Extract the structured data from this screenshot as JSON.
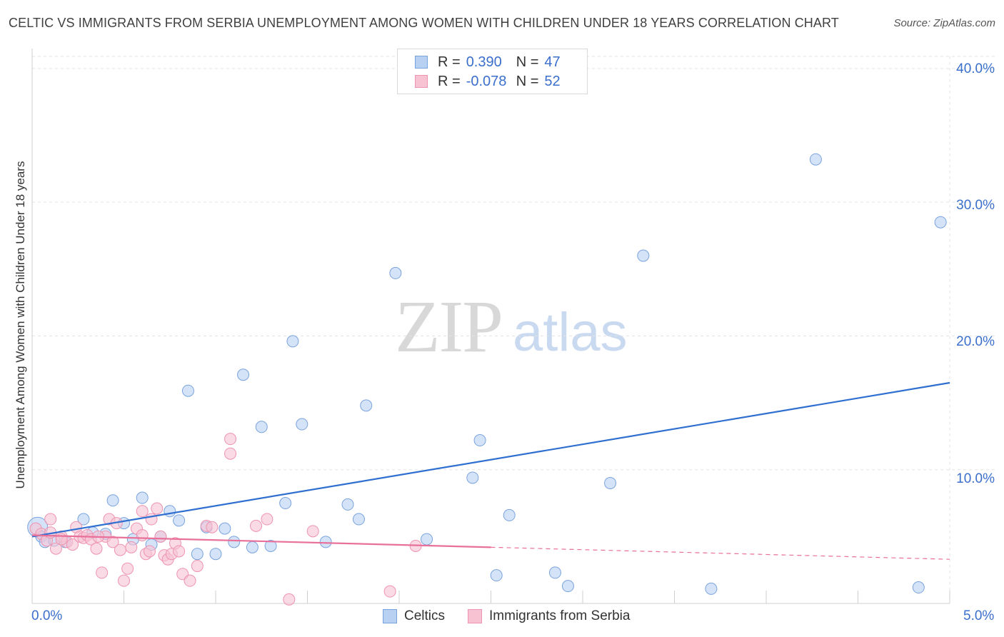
{
  "header": {
    "title": "CELTIC VS IMMIGRANTS FROM SERBIA UNEMPLOYMENT AMONG WOMEN WITH CHILDREN UNDER 18 YEARS CORRELATION CHART",
    "source": "Source: ZipAtlas.com"
  },
  "watermark": {
    "zip": "ZIP",
    "atlas": "atlas"
  },
  "legend": {
    "r_label": "R =",
    "n_label": "N =",
    "rows": [
      {
        "r": "0.390",
        "n": "47"
      },
      {
        "r": "-0.078",
        "n": "52"
      }
    ]
  },
  "colors": {
    "celtic_fill": "#b8d0f2",
    "celtic_stroke": "#7aa3dd",
    "celtic_line": "#2f6fd0",
    "serbia_fill": "#f7c3d3",
    "serbia_stroke": "#ee93b0",
    "serbia_line": "#e8709a",
    "grid": "#e3e3e3",
    "tick_text": "#3a6fcb"
  },
  "chart_data": {
    "type": "scatter",
    "title": "CELTIC VS IMMIGRANTS FROM SERBIA UNEMPLOYMENT AMONG WOMEN WITH CHILDREN UNDER 18 YEARS CORRELATION CHART",
    "xlabel": "",
    "ylabel": "Unemployment Among Women with Children Under 18 years",
    "xlim": [
      0,
      5
    ],
    "ylim": [
      0,
      40
    ],
    "x_tick_labels": [
      "0.0%",
      "5.0%"
    ],
    "y_ticks": [
      10,
      20,
      30,
      40
    ],
    "y_tick_labels": [
      "10.0%",
      "20.0%",
      "30.0%",
      "40.0%"
    ],
    "grid": true,
    "legend_position": "bottom-center",
    "series": [
      {
        "name": "Celtics",
        "r": 0.39,
        "n": 47,
        "trend": {
          "x": [
            0,
            5
          ],
          "y": [
            5.0,
            16.5
          ],
          "dashed_from": null
        },
        "points": [
          [
            0.03,
            5.7
          ],
          [
            0.05,
            5.0
          ],
          [
            0.07,
            4.6
          ],
          [
            0.12,
            4.7
          ],
          [
            0.18,
            4.6
          ],
          [
            0.28,
            6.3
          ],
          [
            0.33,
            5.3
          ],
          [
            0.4,
            5.2
          ],
          [
            0.44,
            7.7
          ],
          [
            0.5,
            6.0
          ],
          [
            0.55,
            4.8
          ],
          [
            0.6,
            7.9
          ],
          [
            0.65,
            4.4
          ],
          [
            0.7,
            5.0
          ],
          [
            0.75,
            6.9
          ],
          [
            0.8,
            6.2
          ],
          [
            0.85,
            15.9
          ],
          [
            0.9,
            3.7
          ],
          [
            0.95,
            5.7
          ],
          [
            1.0,
            3.7
          ],
          [
            1.05,
            5.6
          ],
          [
            1.1,
            4.6
          ],
          [
            1.15,
            17.1
          ],
          [
            1.2,
            4.2
          ],
          [
            1.25,
            13.2
          ],
          [
            1.3,
            4.3
          ],
          [
            1.38,
            7.5
          ],
          [
            1.42,
            19.6
          ],
          [
            1.47,
            13.4
          ],
          [
            1.6,
            4.6
          ],
          [
            1.72,
            7.4
          ],
          [
            1.78,
            6.3
          ],
          [
            1.82,
            14.8
          ],
          [
            1.98,
            24.7
          ],
          [
            2.15,
            4.8
          ],
          [
            2.4,
            9.4
          ],
          [
            2.44,
            12.2
          ],
          [
            2.53,
            2.1
          ],
          [
            2.6,
            6.6
          ],
          [
            2.85,
            2.3
          ],
          [
            2.92,
            1.3
          ],
          [
            3.15,
            9.0
          ],
          [
            3.33,
            26.0
          ],
          [
            3.7,
            1.1
          ],
          [
            4.27,
            33.2
          ],
          [
            4.83,
            1.2
          ],
          [
            4.95,
            28.5
          ]
        ]
      },
      {
        "name": "Immigrants from Serbia",
        "r": -0.078,
        "n": 52,
        "trend": {
          "x": [
            0,
            5
          ],
          "y": [
            5.1,
            3.3
          ],
          "dashed_from": 2.5
        },
        "points": [
          [
            0.02,
            5.6
          ],
          [
            0.05,
            5.2
          ],
          [
            0.08,
            4.7
          ],
          [
            0.1,
            6.3
          ],
          [
            0.13,
            4.1
          ],
          [
            0.16,
            5.0
          ],
          [
            0.19,
            4.6
          ],
          [
            0.22,
            4.4
          ],
          [
            0.24,
            5.7
          ],
          [
            0.26,
            5.0
          ],
          [
            0.28,
            4.9
          ],
          [
            0.3,
            5.1
          ],
          [
            0.32,
            4.8
          ],
          [
            0.35,
            4.1
          ],
          [
            0.38,
            2.3
          ],
          [
            0.4,
            5.0
          ],
          [
            0.42,
            6.3
          ],
          [
            0.44,
            4.6
          ],
          [
            0.46,
            6.0
          ],
          [
            0.48,
            4.0
          ],
          [
            0.5,
            1.7
          ],
          [
            0.52,
            2.6
          ],
          [
            0.54,
            4.2
          ],
          [
            0.57,
            5.6
          ],
          [
            0.6,
            5.1
          ],
          [
            0.6,
            6.9
          ],
          [
            0.62,
            3.7
          ],
          [
            0.64,
            3.9
          ],
          [
            0.65,
            6.3
          ],
          [
            0.68,
            7.1
          ],
          [
            0.7,
            5.0
          ],
          [
            0.72,
            3.6
          ],
          [
            0.74,
            3.3
          ],
          [
            0.76,
            3.7
          ],
          [
            0.78,
            4.5
          ],
          [
            0.8,
            3.9
          ],
          [
            0.82,
            2.2
          ],
          [
            0.86,
            1.7
          ],
          [
            0.9,
            2.8
          ],
          [
            0.95,
            5.8
          ],
          [
            0.98,
            5.7
          ],
          [
            1.08,
            12.3
          ],
          [
            1.08,
            11.2
          ],
          [
            1.22,
            5.8
          ],
          [
            1.28,
            6.3
          ],
          [
            1.4,
            0.3
          ],
          [
            1.53,
            5.4
          ],
          [
            1.95,
            0.9
          ],
          [
            2.09,
            4.3
          ],
          [
            0.16,
            4.8
          ],
          [
            0.36,
            5.0
          ],
          [
            0.1,
            5.3
          ]
        ]
      }
    ]
  },
  "bottom_legend": {
    "items": [
      "Celtics",
      "Immigrants from Serbia"
    ]
  }
}
